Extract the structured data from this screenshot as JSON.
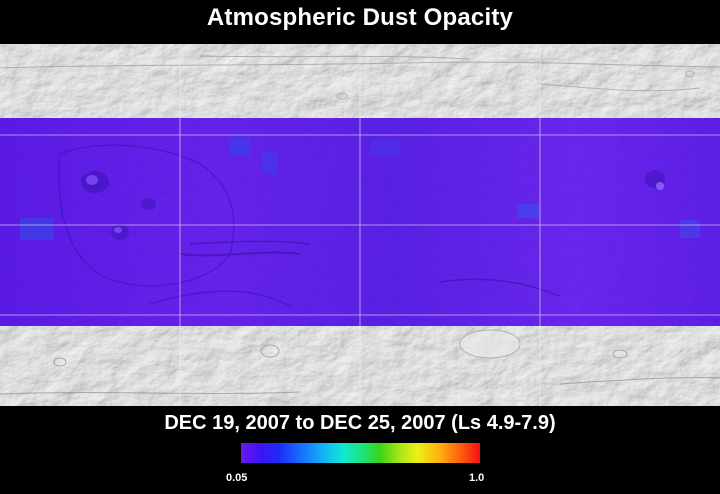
{
  "title": "Atmospheric Dust Opacity",
  "date_range": "DEC 19, 2007 to DEC 25, 2007 (Ls 4.9-7.9)",
  "colorbar": {
    "min_label": "0.05",
    "max_label": "1.0",
    "min_value": 0.05,
    "max_value": 1.0,
    "low_color": "#6a18f0",
    "high_color": "#f51010"
  },
  "map": {
    "dust_opacity_level": 0.05,
    "dust_band_color": "#6a1cf0",
    "basemap_color": "#d8d8d8",
    "grid": true
  }
}
